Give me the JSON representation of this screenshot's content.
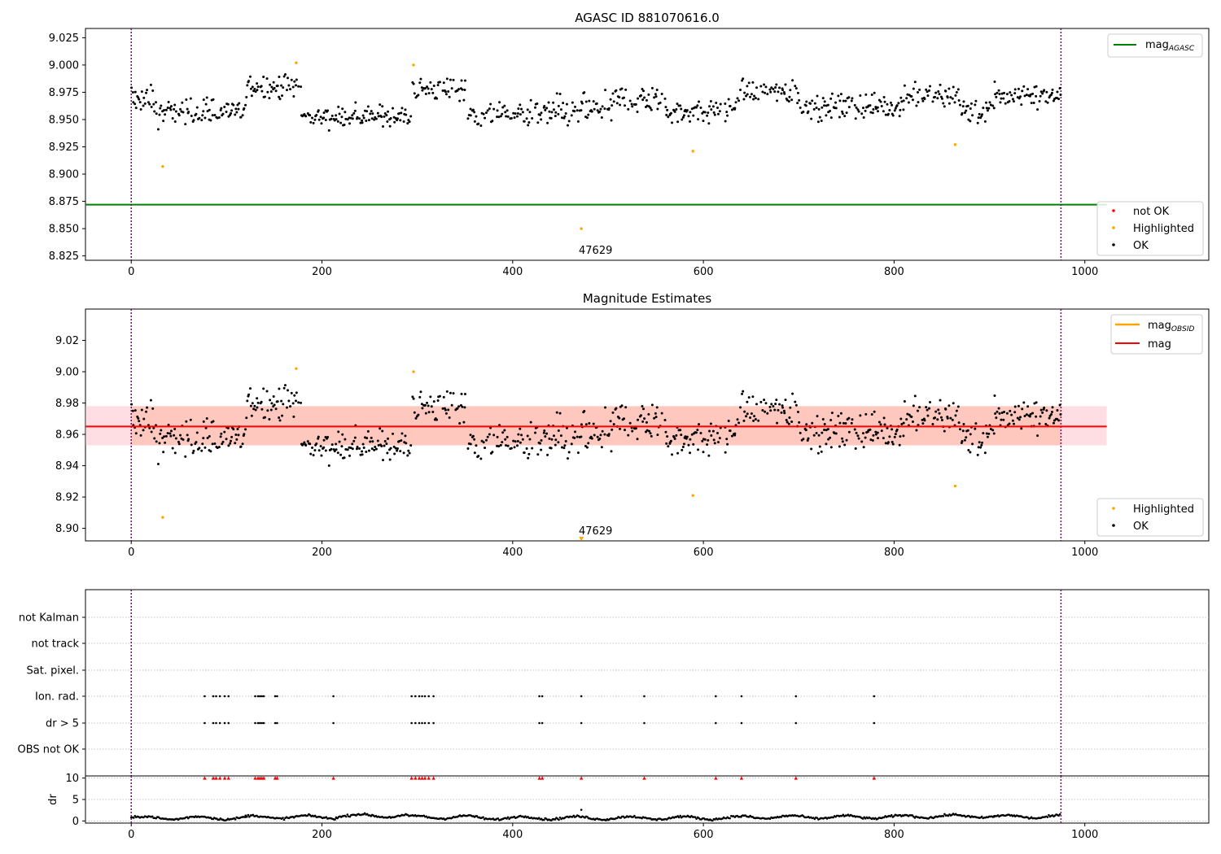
{
  "figure": {
    "panel1_title": "AGASC ID 881070616.0",
    "panel2_title": "Magnitude Estimates",
    "annotation_label": "47629"
  },
  "colors": {
    "ok": "#000000",
    "highlighted": "#ffa500",
    "not_ok": "#ff0000",
    "mag_agasc": "#008000",
    "mag_obsid": "#ffa500",
    "mag": "#ff0000",
    "band_outer": "#ffb6c1",
    "band_inner": "#ffa07a",
    "obs_boundary": "#800080",
    "grid": "#b0b0b0"
  },
  "chart_data": [
    {
      "type": "scatter",
      "title": "AGASC ID 881070616.0",
      "xlim": [
        -48,
        1130
      ],
      "ylim": [
        8.821,
        9.0335
      ],
      "xticks": [
        0,
        200,
        400,
        600,
        800,
        1000
      ],
      "xtick_labels": [
        "0",
        "200",
        "400",
        "600",
        "800",
        "1000"
      ],
      "yticks": [
        8.825,
        8.85,
        8.875,
        8.9,
        8.925,
        8.95,
        8.975,
        9.0,
        9.025
      ],
      "ytick_labels": [
        "8.825",
        "8.850",
        "8.875",
        "8.900",
        "8.925",
        "8.950",
        "8.975",
        "9.000",
        "9.025"
      ],
      "mag_agasc": 8.872,
      "obs_boundaries": [
        0,
        975
      ],
      "highlighted_points": [
        [
          33,
          8.907
        ],
        [
          173,
          9.002
        ],
        [
          296,
          9.0
        ],
        [
          472,
          8.85
        ],
        [
          589,
          8.921
        ],
        [
          864,
          8.927
        ]
      ],
      "ok_segments": [
        {
          "x": [
            0,
            25
          ],
          "mean": 8.968,
          "spread": 0.012
        },
        {
          "x": [
            25,
            120
          ],
          "mean": 8.957,
          "spread": 0.011
        },
        {
          "x": [
            120,
            178
          ],
          "mean": 8.981,
          "spread": 0.009
        },
        {
          "x": [
            178,
            295
          ],
          "mean": 8.953,
          "spread": 0.008
        },
        {
          "x": [
            295,
            352
          ],
          "mean": 8.978,
          "spread": 0.01
        },
        {
          "x": [
            352,
            440
          ],
          "mean": 8.955,
          "spread": 0.011
        },
        {
          "x": [
            440,
            505
          ],
          "mean": 8.958,
          "spread": 0.012
        },
        {
          "x": [
            505,
            560
          ],
          "mean": 8.968,
          "spread": 0.012
        },
        {
          "x": [
            560,
            635
          ],
          "mean": 8.957,
          "spread": 0.011
        },
        {
          "x": [
            635,
            700
          ],
          "mean": 8.975,
          "spread": 0.01
        },
        {
          "x": [
            700,
            810
          ],
          "mean": 8.962,
          "spread": 0.01
        },
        {
          "x": [
            810,
            870
          ],
          "mean": 8.972,
          "spread": 0.01
        },
        {
          "x": [
            870,
            905
          ],
          "mean": 8.958,
          "spread": 0.01
        },
        {
          "x": [
            905,
            975
          ],
          "mean": 8.972,
          "spread": 0.009
        }
      ],
      "annotation": {
        "x": 472,
        "y": 8.85,
        "text": "47629"
      },
      "legend_top": {
        "placement": "top-right",
        "entries": [
          "mag_AGASC"
        ]
      },
      "legend_bottom": {
        "placement": "bottom-right",
        "entries": [
          "not OK",
          "Highlighted",
          "OK"
        ]
      }
    },
    {
      "type": "scatter",
      "title": "Magnitude Estimates",
      "xlim": [
        -48,
        1130
      ],
      "ylim": [
        8.892,
        9.04
      ],
      "xticks": [
        0,
        200,
        400,
        600,
        800,
        1000
      ],
      "xtick_labels": [
        "0",
        "200",
        "400",
        "600",
        "800",
        "1000"
      ],
      "yticks": [
        8.9,
        8.92,
        8.94,
        8.96,
        8.98,
        9.0,
        9.02
      ],
      "ytick_labels": [
        "8.90",
        "8.92",
        "8.94",
        "8.96",
        "8.98",
        "9.00",
        "9.02"
      ],
      "mag": 8.965,
      "mag_band": [
        8.953,
        8.978
      ],
      "band_x": [
        0,
        1023
      ],
      "obs_boundaries": [
        0,
        975
      ],
      "highlighted_points": [
        [
          33,
          8.907
        ],
        [
          173,
          9.002
        ],
        [
          296,
          9.0
        ],
        [
          589,
          8.921
        ],
        [
          864,
          8.927
        ]
      ],
      "offscale_marker": {
        "x": 472,
        "text": "47629"
      },
      "legend_top": {
        "placement": "top-right",
        "entries": [
          "mag_OBSID",
          "mag"
        ]
      },
      "legend_bottom": {
        "placement": "bottom-right",
        "entries": [
          "Highlighted",
          "OK"
        ]
      }
    },
    {
      "type": "scatter",
      "title": "",
      "xlim": [
        -48,
        1130
      ],
      "xticks": [
        0,
        200,
        400,
        600,
        800,
        1000
      ],
      "xtick_labels": [
        "0",
        "200",
        "400",
        "600",
        "800",
        "1000"
      ],
      "flag_rows": [
        "not Kalman",
        "not track",
        "Sat. pixel.",
        "Ion. rad.",
        "dr > 5",
        "OBS not OK"
      ],
      "flag_points": {
        "Ion. rad.": [
          77,
          86,
          89,
          93,
          98,
          102,
          130,
          133,
          135,
          137,
          139,
          151,
          153,
          212,
          294,
          298,
          302,
          305,
          308,
          312,
          317,
          428,
          431,
          472,
          538,
          613,
          640,
          697,
          779
        ],
        "dr > 5": [
          77,
          86,
          89,
          93,
          98,
          102,
          130,
          133,
          135,
          137,
          139,
          151,
          153,
          212,
          294,
          298,
          302,
          305,
          308,
          312,
          317,
          428,
          431,
          472,
          538,
          613,
          640,
          697,
          779
        ]
      },
      "dr_ylabel": "dr",
      "dr_ylim": [
        -0.5,
        10.5
      ],
      "dr_yticks": [
        0,
        5,
        10
      ],
      "dr_ytick_labels": [
        "0",
        "5",
        "10"
      ],
      "dr_clipped_x": [
        77,
        86,
        89,
        93,
        98,
        102,
        130,
        133,
        135,
        137,
        139,
        151,
        153,
        212,
        294,
        298,
        302,
        305,
        308,
        312,
        317,
        428,
        431,
        472,
        538,
        613,
        640,
        697,
        779
      ],
      "dr_segments": [
        {
          "x": [
            0,
            120
          ],
          "mean": 0.7
        },
        {
          "x": [
            120,
            215
          ],
          "mean": 0.9
        },
        {
          "x": [
            215,
            290
          ],
          "mean": 1.2
        },
        {
          "x": [
            290,
            360
          ],
          "mean": 0.9
        },
        {
          "x": [
            360,
            640
          ],
          "mean": 0.7
        },
        {
          "x": [
            640,
            810
          ],
          "mean": 0.9
        },
        {
          "x": [
            810,
            905
          ],
          "mean": 1.1
        },
        {
          "x": [
            905,
            975
          ],
          "mean": 1.0
        }
      ],
      "dr_outlier": [
        472,
        2.6
      ],
      "obs_boundaries": [
        0,
        975
      ]
    }
  ]
}
